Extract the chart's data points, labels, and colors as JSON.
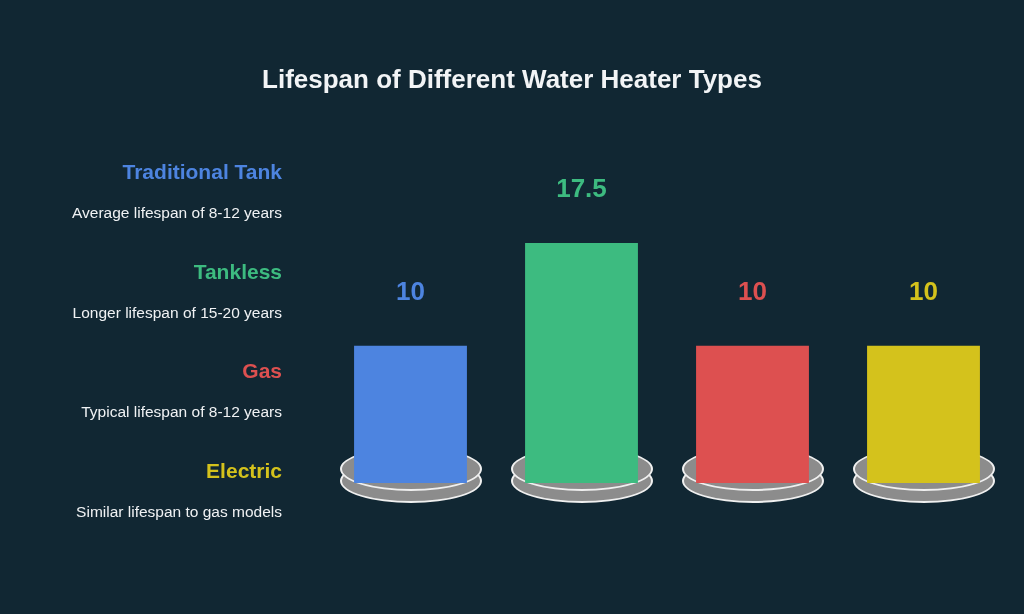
{
  "chart_data": {
    "type": "bar",
    "title": "Lifespan of Different Water Heater Types",
    "categories": [
      null,
      null,
      null,
      null
    ],
    "stacked": true,
    "series": [
      {
        "name": "Traditional Tank",
        "color": "#4d84e0",
        "values": [
          10,
          null,
          null,
          null
        ]
      },
      {
        "name": "Tankless",
        "color": "#3dbb80",
        "values": [
          null,
          17.5,
          null,
          null
        ]
      },
      {
        "name": "Gas",
        "color": "#dd5050",
        "values": [
          null,
          null,
          10,
          null
        ]
      },
      {
        "name": "Electric",
        "color": "#d4c21c",
        "values": [
          null,
          null,
          null,
          10
        ]
      }
    ],
    "annotations": [
      "Average lifespan of 8-12 years",
      "Longer lifespan of 15-20 years",
      "Typical lifespan of 8-12 years",
      "Similar lifespan to gas models"
    ],
    "data_labels": true,
    "tick_labels": false
  }
}
